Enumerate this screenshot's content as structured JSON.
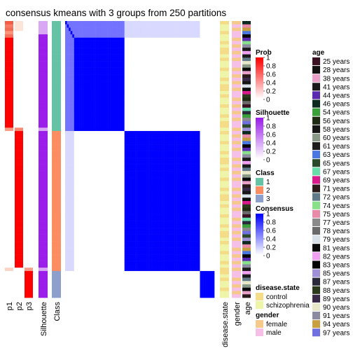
{
  "chart_data": {
    "type": "heatmap",
    "title": "consensus kmeans with 3 groups from 250 partitions",
    "columns": [
      "p1",
      "p2",
      "p3",
      "Silhouette",
      "Class"
    ],
    "right_columns": [
      "disease.state",
      "gender",
      "age"
    ],
    "groups": [
      {
        "class": "1",
        "samples": 33
      },
      {
        "class": "2",
        "samples": 42
      },
      {
        "class": "3",
        "samples": 8
      }
    ],
    "legends": {
      "prob": {
        "title": "Prob",
        "ticks": [
          "1",
          "0.8",
          "0.6",
          "0.4",
          "0.2",
          "0"
        ],
        "colors": [
          "#ff0000",
          "#ffffff"
        ]
      },
      "silhouette": {
        "title": "Silhouette",
        "ticks": [
          "1",
          "0.8",
          "0.6",
          "0.4",
          "0.2",
          "0"
        ],
        "colors": [
          "#9a1fe8",
          "#ffffff"
        ]
      },
      "class": {
        "title": "Class",
        "items": [
          {
            "label": "1",
            "color": "#66c2a5"
          },
          {
            "label": "2",
            "color": "#fc8d62"
          },
          {
            "label": "3",
            "color": "#8da0cb"
          }
        ]
      },
      "consensus": {
        "title": "Consensus",
        "ticks": [
          "1",
          "0.8",
          "0.6",
          "0.4",
          "0.2",
          "0"
        ],
        "colors": [
          "#0000ff",
          "#ffffff"
        ]
      },
      "disease_state": {
        "title": "disease.state",
        "items": [
          {
            "label": "control",
            "color": "#f4dc88"
          },
          {
            "label": "schizophrenia",
            "color": "#eef5a8"
          }
        ]
      },
      "gender": {
        "title": "gender",
        "items": [
          {
            "label": "female",
            "color": "#f5c98a"
          },
          {
            "label": "male",
            "color": "#f5bfe8"
          }
        ]
      },
      "age": {
        "title": "age",
        "items": [
          {
            "label": "25 years",
            "color": "#3a1122"
          },
          {
            "label": "28 years",
            "color": "#111111"
          },
          {
            "label": "38 years",
            "color": "#e8a0c8"
          },
          {
            "label": "41 years",
            "color": "#1a1a1a"
          },
          {
            "label": "44 years",
            "color": "#5a2ab0"
          },
          {
            "label": "46 years",
            "color": "#0e2a1e"
          },
          {
            "label": "54 years",
            "color": "#3aa03a"
          },
          {
            "label": "56 years",
            "color": "#1e2a12"
          },
          {
            "label": "58 years",
            "color": "#161616"
          },
          {
            "label": "60 years",
            "color": "#889988"
          },
          {
            "label": "61 years",
            "color": "#1c1c1c"
          },
          {
            "label": "63 years",
            "color": "#4a78e0"
          },
          {
            "label": "65 years",
            "color": "#2a4a2a"
          },
          {
            "label": "67 years",
            "color": "#66e0a8"
          },
          {
            "label": "69 years",
            "color": "#d81a8a"
          },
          {
            "label": "71 years",
            "color": "#2a1a1a"
          },
          {
            "label": "72 years",
            "color": "#607a8a"
          },
          {
            "label": "74 years",
            "color": "#88e088"
          },
          {
            "label": "75 years",
            "color": "#e88aa8"
          },
          {
            "label": "77 years",
            "color": "#8a8a8a"
          },
          {
            "label": "78 years",
            "color": "#6a6a6a"
          },
          {
            "label": "79 years",
            "color": "#d8e0e8"
          },
          {
            "label": "81 years",
            "color": "#0a0a0a"
          },
          {
            "label": "82 years",
            "color": "#f0a0f0"
          },
          {
            "label": "83 years",
            "color": "#050505"
          },
          {
            "label": "85 years",
            "color": "#a090d8"
          },
          {
            "label": "87 years",
            "color": "#2a2a3a"
          },
          {
            "label": "88 years",
            "color": "#2a3a1a"
          },
          {
            "label": "89 years",
            "color": "#3a2a4a"
          },
          {
            "label": "90 years",
            "color": "#e8e8c8"
          },
          {
            "label": "91 years",
            "color": "#8a8aa0"
          },
          {
            "label": "94 years",
            "color": "#c8a040"
          },
          {
            "label": "97 years",
            "color": "#7070e0"
          }
        ]
      }
    }
  }
}
